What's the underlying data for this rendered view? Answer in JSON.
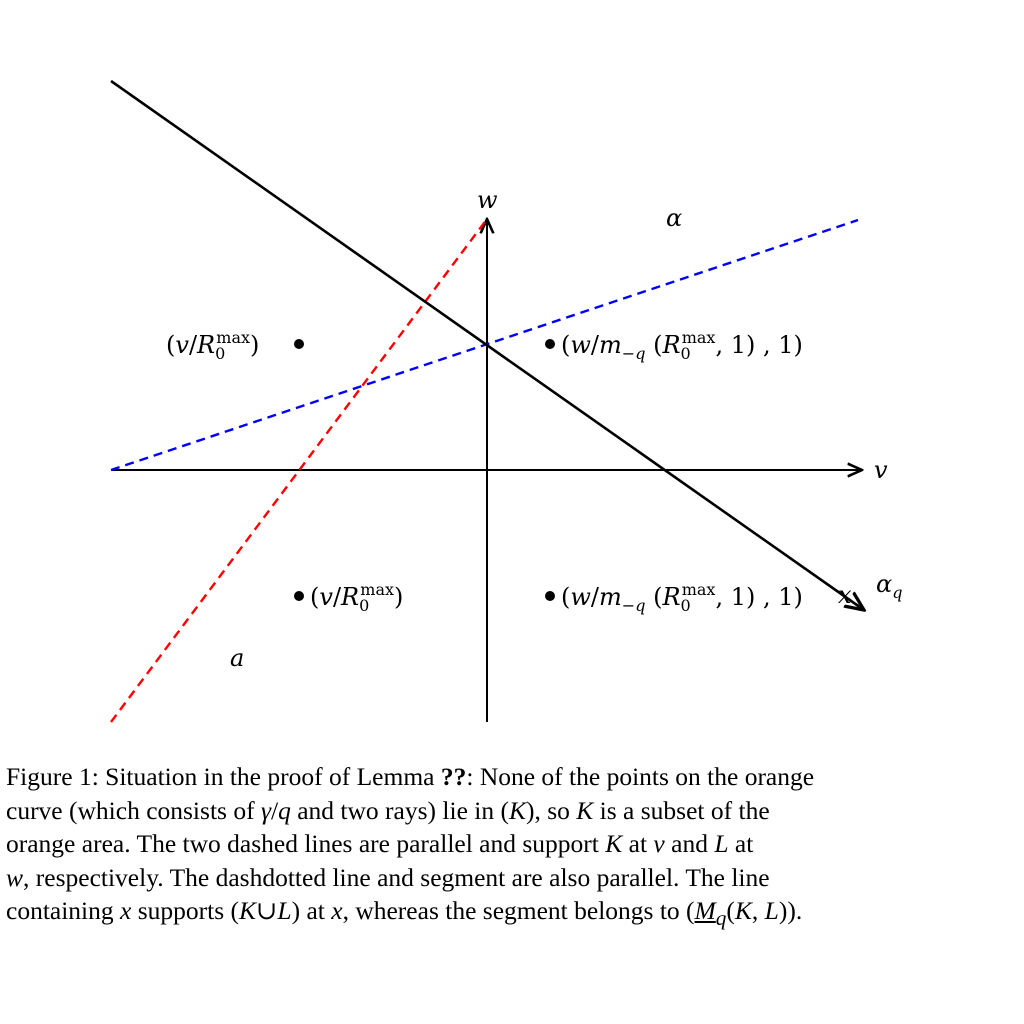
{
  "figure": {
    "axes": {
      "horizontal_label": "v",
      "vertical_label": "w"
    },
    "region_labels": {
      "alpha": "α",
      "alpha_q": "α_q",
      "a": "a",
      "x": "x"
    },
    "points": [
      {
        "label": "(v/R_0^max)",
        "side": "left"
      },
      {
        "label": "(w/m_{−q}(R_0^max, 1), 1)",
        "side": "right"
      },
      {
        "label": "(v/R_0^max)",
        "side": "right"
      },
      {
        "label": "(w/m_{−q}(R_0^max, 1), 1)",
        "side": "right"
      }
    ],
    "lines": [
      {
        "name": "solid line",
        "style": "solid",
        "color": "#000000",
        "arrow": true
      },
      {
        "name": "blue dashed line",
        "style": "dashed",
        "color": "#0000ff"
      },
      {
        "name": "red dashed line",
        "style": "dashed",
        "color": "#ff0000"
      }
    ],
    "colors": {
      "axis": "#000000",
      "blue": "#0000ff",
      "red": "#ff0000",
      "point": "#000000"
    }
  },
  "caption": {
    "lines": [
      "Figure 1: Situation in the proof of Lemma ??: None of the points on the orange",
      "curve (which consists of γ/q and two rays) lie in (K), so K is a subset of the",
      "orange area. The two dashed lines are parallel and support K at v and L at",
      "w, respectively. The dashdotted line and segment are also parallel. The line",
      "containing x supports (K∪L) at x, whereas the segment belongs to (M_q(K, L))."
    ]
  }
}
